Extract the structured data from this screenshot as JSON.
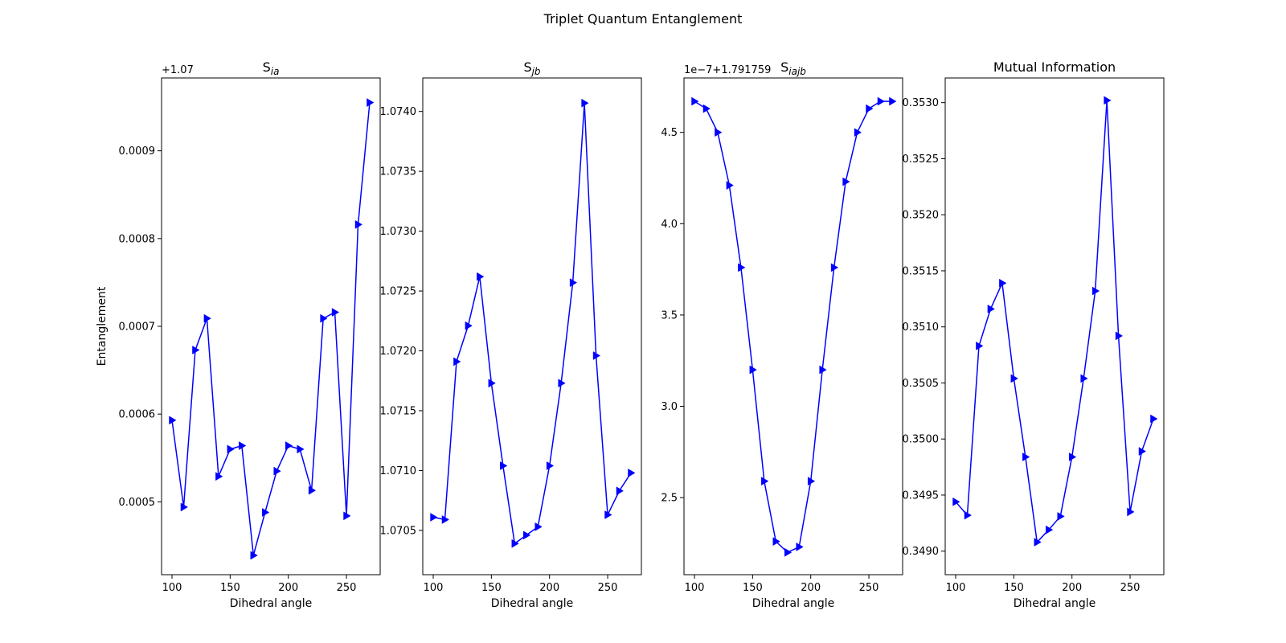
{
  "figure": {
    "title": "Triplet Quantum Entanglement",
    "line_color": "#0000ff",
    "marker": "triangle-right"
  },
  "chart_data": [
    {
      "type": "line",
      "title_main": "S",
      "title_sub": "ia",
      "xlabel": "Dihedral angle",
      "ylabel": "Entanglement",
      "offset_label": "+1.07",
      "xlim": [
        91,
        279
      ],
      "ylim": [
        0.000417,
        0.000983
      ],
      "xticks": [
        100,
        150,
        200,
        250
      ],
      "xtick_labels": [
        "100",
        "150",
        "200",
        "250"
      ],
      "yticks": [
        0.0005,
        0.0006,
        0.0007,
        0.0008,
        0.0009
      ],
      "ytick_labels": [
        "0.0005",
        "0.0006",
        "0.0007",
        "0.0008",
        "0.0009"
      ],
      "x": [
        100,
        110,
        120,
        130,
        140,
        150,
        160,
        170,
        180,
        190,
        200,
        210,
        220,
        230,
        240,
        250,
        260,
        270
      ],
      "y": [
        0.000593,
        0.000494,
        0.000673,
        0.000709,
        0.000529,
        0.00056,
        0.000564,
        0.000439,
        0.000488,
        0.000535,
        0.000564,
        0.00056,
        0.000513,
        0.000709,
        0.000716,
        0.000484,
        0.000816,
        0.000955
      ]
    },
    {
      "type": "line",
      "title_main": "S",
      "title_sub": "jb",
      "xlabel": "Dihedral angle",
      "ylabel": "",
      "offset_label": "",
      "xlim": [
        91,
        279
      ],
      "ylim": [
        1.07013,
        1.07428
      ],
      "xticks": [
        100,
        150,
        200,
        250
      ],
      "xtick_labels": [
        "100",
        "150",
        "200",
        "250"
      ],
      "yticks": [
        1.0705,
        1.071,
        1.0715,
        1.072,
        1.0725,
        1.073,
        1.0735,
        1.074
      ],
      "ytick_labels": [
        "1.0705",
        "1.0710",
        "1.0715",
        "1.0720",
        "1.0725",
        "1.0730",
        "1.0735",
        "1.0740"
      ],
      "x": [
        100,
        110,
        120,
        130,
        140,
        150,
        160,
        170,
        180,
        190,
        200,
        210,
        220,
        230,
        240,
        250,
        260,
        270
      ],
      "y": [
        1.07061,
        1.07059,
        1.07191,
        1.07221,
        1.07262,
        1.07173,
        1.07104,
        1.07039,
        1.07046,
        1.07053,
        1.07104,
        1.07173,
        1.07257,
        1.07407,
        1.07196,
        1.07063,
        1.07083,
        1.07098
      ]
    },
    {
      "type": "line",
      "title_main": "S",
      "title_sub": "iajb",
      "xlabel": "Dihedral angle",
      "ylabel": "",
      "offset_label": "1e−7+1.791759",
      "xlim": [
        91,
        279
      ],
      "ylim": [
        2.078,
        4.798
      ],
      "xticks": [
        100,
        150,
        200,
        250
      ],
      "xtick_labels": [
        "100",
        "150",
        "200",
        "250"
      ],
      "yticks": [
        2.5,
        3.0,
        3.5,
        4.0,
        4.5
      ],
      "ytick_labels": [
        "2.5",
        "3.0",
        "3.5",
        "4.0",
        "4.5"
      ],
      "x": [
        100,
        110,
        120,
        130,
        140,
        150,
        160,
        170,
        180,
        190,
        200,
        210,
        220,
        230,
        240,
        250,
        260,
        270
      ],
      "y": [
        4.67,
        4.63,
        4.5,
        4.21,
        3.76,
        3.2,
        2.59,
        2.26,
        2.2,
        2.23,
        2.59,
        3.2,
        3.76,
        4.23,
        4.5,
        4.63,
        4.67,
        4.67
      ]
    },
    {
      "type": "line",
      "title_main": "Mutual Information",
      "title_sub": "",
      "xlabel": "Dihedral angle",
      "ylabel": "",
      "offset_label": "",
      "xlim": [
        91,
        279
      ],
      "ylim": [
        0.34879,
        0.35322
      ],
      "xticks": [
        100,
        150,
        200,
        250
      ],
      "xtick_labels": [
        "100",
        "150",
        "200",
        "250"
      ],
      "yticks": [
        0.349,
        0.3495,
        0.35,
        0.3505,
        0.351,
        0.3515,
        0.352,
        0.3525,
        0.353
      ],
      "ytick_labels": [
        "0.3490",
        "0.3495",
        "0.3500",
        "0.3505",
        "0.3510",
        "0.3515",
        "0.3520",
        "0.3525",
        "0.3530"
      ],
      "x": [
        100,
        110,
        120,
        130,
        140,
        150,
        160,
        170,
        180,
        190,
        200,
        210,
        220,
        230,
        240,
        250,
        260,
        270
      ],
      "y": [
        0.34944,
        0.34932,
        0.35083,
        0.35116,
        0.35139,
        0.35054,
        0.34984,
        0.34908,
        0.34919,
        0.34931,
        0.34984,
        0.35054,
        0.35132,
        0.35302,
        0.35092,
        0.34935,
        0.34989,
        0.35018
      ]
    }
  ]
}
